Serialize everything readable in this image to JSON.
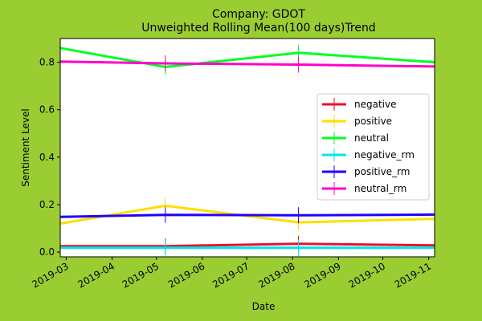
{
  "chart_data": {
    "type": "line",
    "title": "Company: GDOT",
    "subtitle": "Unweighted Rolling Mean(100 days)Trend",
    "xlabel": "Date",
    "ylabel": "Sentiment Level",
    "x": [
      "2019-02-25",
      "2019-05-07",
      "2019-08-05",
      "2019-11-05"
    ],
    "xlim": [
      "2019-02-25",
      "2019-11-05"
    ],
    "ylim": [
      -0.02,
      0.9
    ],
    "x_ticks": [
      "2019-03",
      "2019-04",
      "2019-05",
      "2019-06",
      "2019-07",
      "2019-08",
      "2019-09",
      "2019-10",
      "2019-11"
    ],
    "y_ticks": [
      "0.0",
      "0.2",
      "0.4",
      "0.6",
      "0.8"
    ],
    "legend_position": "center-right",
    "grid": false,
    "series": [
      {
        "name": "negative",
        "color": "#e8112d",
        "values": [
          0.025,
          0.025,
          0.035,
          0.028
        ],
        "error_markers": [
          false,
          true,
          true,
          false
        ]
      },
      {
        "name": "positive",
        "color": "#ffdd00",
        "values": [
          0.12,
          0.195,
          0.125,
          0.14
        ],
        "error_markers": [
          false,
          true,
          true,
          false
        ]
      },
      {
        "name": "neutral",
        "color": "#00ff22",
        "values": [
          0.86,
          0.78,
          0.84,
          0.8
        ],
        "error_markers": [
          false,
          true,
          true,
          false
        ]
      },
      {
        "name": "negative_rm",
        "color": "#00e5ee",
        "values": [
          0.018,
          0.018,
          0.018,
          0.018
        ],
        "error_markers": [
          false,
          true,
          true,
          false
        ]
      },
      {
        "name": "positive_rm",
        "color": "#2200ff",
        "values": [
          0.148,
          0.157,
          0.155,
          0.158
        ],
        "error_markers": [
          false,
          true,
          true,
          false
        ]
      },
      {
        "name": "neutral_rm",
        "color": "#ff00cc",
        "values": [
          0.803,
          0.795,
          0.79,
          0.782
        ],
        "error_markers": [
          false,
          true,
          true,
          false
        ]
      }
    ]
  }
}
